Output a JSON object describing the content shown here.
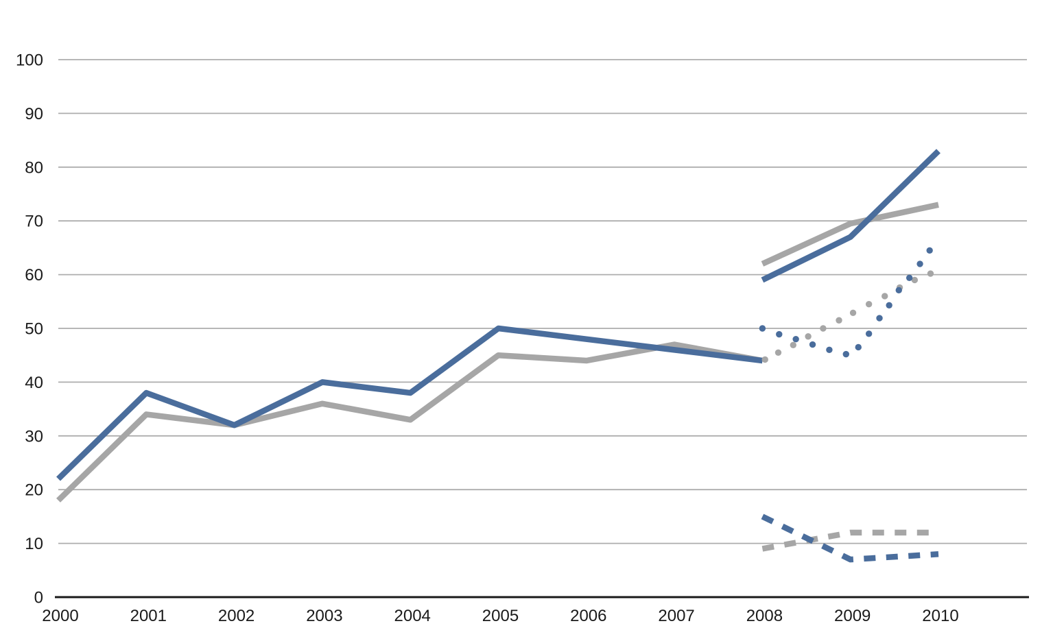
{
  "page": {
    "background": "#ffffff"
  },
  "chart_data": {
    "type": "line",
    "title": "",
    "xlabel": "",
    "ylabel": "",
    "legend": "none",
    "grid": "horizontal",
    "ylim": [
      0,
      100
    ],
    "xlim_years": [
      2000,
      2011
    ],
    "axis_color": "#1a1a1a",
    "gridline_color": "#adadad",
    "text_color": "#1a1a1a",
    "accent_blue": "#4a6d9c",
    "accent_gray": "#a6a6a6",
    "y_ticks": [
      {
        "value": 0,
        "label": "0"
      },
      {
        "value": 10,
        "label": "10"
      },
      {
        "value": 20,
        "label": "20"
      },
      {
        "value": 30,
        "label": "30"
      },
      {
        "value": 40,
        "label": "40"
      },
      {
        "value": 50,
        "label": "50"
      },
      {
        "value": 60,
        "label": "60"
      },
      {
        "value": 70,
        "label": "70"
      },
      {
        "value": 80,
        "label": "80"
      },
      {
        "value": 90,
        "label": "90"
      },
      {
        "value": 100,
        "label": "100"
      }
    ],
    "x_ticks": [
      {
        "year": 2000,
        "label": "2000"
      },
      {
        "year": 2001,
        "label": "2001"
      },
      {
        "year": 2002,
        "label": "2002"
      },
      {
        "year": 2003,
        "label": "2003"
      },
      {
        "year": 2004,
        "label": "2004"
      },
      {
        "year": 2005,
        "label": "2005"
      },
      {
        "year": 2006,
        "label": "2006"
      },
      {
        "year": 2007,
        "label": "2007"
      },
      {
        "year": 2008,
        "label": "2008"
      },
      {
        "year": 2009,
        "label": "2009"
      },
      {
        "year": 2010,
        "label": "2010"
      }
    ],
    "series": [
      {
        "name": "gray-solid-actual",
        "color": "#a6a6a6",
        "style": "solid",
        "points": [
          [
            2000,
            18
          ],
          [
            2001,
            34
          ],
          [
            2002,
            32
          ],
          [
            2003,
            36
          ],
          [
            2004,
            33
          ],
          [
            2005,
            45
          ],
          [
            2006,
            44
          ],
          [
            2007,
            47
          ],
          [
            2008,
            44
          ]
        ]
      },
      {
        "name": "blue-solid-actual",
        "color": "#4a6d9c",
        "style": "solid",
        "points": [
          [
            2000,
            22
          ],
          [
            2001,
            38
          ],
          [
            2002,
            32
          ],
          [
            2003,
            40
          ],
          [
            2004,
            38
          ],
          [
            2005,
            50
          ],
          [
            2006,
            48
          ],
          [
            2007,
            46
          ],
          [
            2008,
            44
          ]
        ]
      },
      {
        "name": "gray-solid-projection",
        "color": "#a6a6a6",
        "style": "solid",
        "points": [
          [
            2008,
            62
          ],
          [
            2009,
            69.5
          ],
          [
            2010,
            73
          ]
        ]
      },
      {
        "name": "blue-solid-projection",
        "color": "#4a6d9c",
        "style": "solid",
        "points": [
          [
            2008,
            59
          ],
          [
            2009,
            67
          ],
          [
            2010,
            83
          ]
        ]
      },
      {
        "name": "gray-dashed-projection",
        "color": "#a6a6a6",
        "style": "dashed",
        "points": [
          [
            2008,
            9
          ],
          [
            2009,
            12
          ],
          [
            2010,
            12
          ]
        ]
      },
      {
        "name": "blue-dashed-projection",
        "color": "#4a6d9c",
        "style": "dashed",
        "points": [
          [
            2008,
            15
          ],
          [
            2009,
            7
          ],
          [
            2010,
            8
          ]
        ]
      },
      {
        "name": "gray-dotted-projection",
        "color": "#a6a6a6",
        "style": "dotted",
        "points": [
          [
            2008,
            44
          ],
          [
            2009,
            53
          ],
          [
            2010,
            60.5
          ]
        ],
        "dots": [
          [
            2008.03,
            44.2
          ],
          [
            2008.18,
            45.5
          ],
          [
            2008.35,
            46.9
          ],
          [
            2008.52,
            48.5
          ],
          [
            2008.69,
            50.0
          ],
          [
            2008.87,
            51.5
          ],
          [
            2009.03,
            52.9
          ],
          [
            2009.21,
            54.5
          ],
          [
            2009.39,
            56.0
          ],
          [
            2009.56,
            57.6
          ],
          [
            2009.73,
            59.0
          ],
          [
            2009.91,
            60.2
          ]
        ]
      },
      {
        "name": "blue-dotted-projection",
        "color": "#4a6d9c",
        "style": "dotted",
        "points": [
          [
            2008,
            50
          ],
          [
            2009,
            45
          ],
          [
            2010,
            65
          ]
        ],
        "dots": [
          [
            2008.0,
            50.0
          ],
          [
            2008.19,
            48.9
          ],
          [
            2008.38,
            48.0
          ],
          [
            2008.57,
            47.0
          ],
          [
            2008.76,
            46.0
          ],
          [
            2008.95,
            45.2
          ],
          [
            2009.09,
            46.5
          ],
          [
            2009.21,
            49.0
          ],
          [
            2009.33,
            51.9
          ],
          [
            2009.44,
            54.3
          ],
          [
            2009.55,
            57.1
          ],
          [
            2009.67,
            59.4
          ],
          [
            2009.79,
            62.0
          ],
          [
            2009.9,
            64.5
          ]
        ]
      }
    ]
  }
}
